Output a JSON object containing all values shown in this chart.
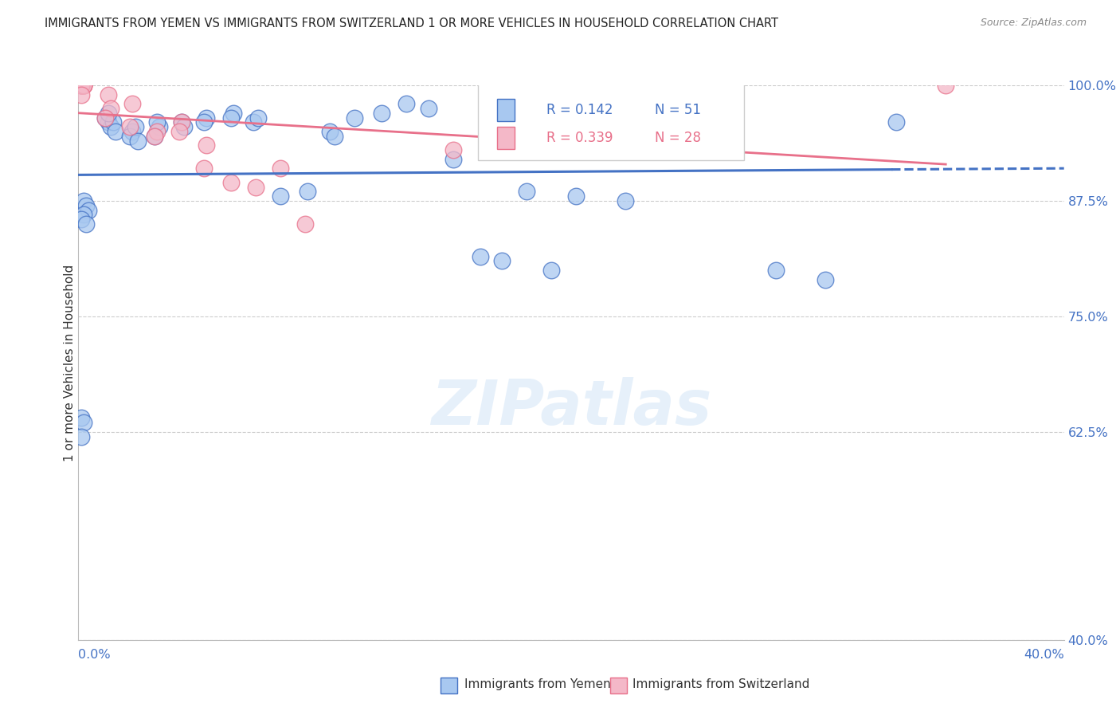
{
  "title": "IMMIGRANTS FROM YEMEN VS IMMIGRANTS FROM SWITZERLAND 1 OR MORE VEHICLES IN HOUSEHOLD CORRELATION CHART",
  "source": "Source: ZipAtlas.com",
  "ylabel": "1 or more Vehicles in Household",
  "ytick_vals": [
    0.4,
    0.625,
    0.75,
    0.875,
    1.0
  ],
  "ytick_labels": [
    "40.0%",
    "62.5%",
    "75.0%",
    "87.5%",
    "100.0%"
  ],
  "legend_yemen": "Immigrants from Yemen",
  "legend_switzerland": "Immigrants from Switzerland",
  "R_yemen": 0.142,
  "N_yemen": 51,
  "R_switzerland": 0.339,
  "N_switzerland": 28,
  "color_yemen_fill": "#A8C8F0",
  "color_switzerland_fill": "#F4B8C8",
  "color_yemen_edge": "#4472C4",
  "color_switzerland_edge": "#E8708A",
  "color_text_blue": "#4472C4",
  "color_text_pink": "#E8708A",
  "watermark": "ZIPatlas",
  "yemen_x": [
    0.002,
    0.003,
    0.004,
    0.002,
    0.001,
    0.003,
    0.001,
    0.002,
    0.001,
    0.012,
    0.013,
    0.011,
    0.014,
    0.012,
    0.015,
    0.022,
    0.021,
    0.023,
    0.024,
    0.033,
    0.032,
    0.031,
    0.042,
    0.043,
    0.052,
    0.051,
    0.063,
    0.062,
    0.071,
    0.073,
    0.082,
    0.093,
    0.102,
    0.104,
    0.112,
    0.123,
    0.133,
    0.142,
    0.152,
    0.163,
    0.172,
    0.182,
    0.192,
    0.202,
    0.222,
    0.232,
    0.252,
    0.263,
    0.283,
    0.303,
    0.332
  ],
  "yemen_y": [
    0.875,
    0.87,
    0.865,
    0.86,
    0.855,
    0.85,
    0.64,
    0.635,
    0.62,
    0.96,
    0.955,
    0.965,
    0.96,
    0.97,
    0.95,
    0.95,
    0.945,
    0.955,
    0.94,
    0.955,
    0.96,
    0.945,
    0.96,
    0.955,
    0.965,
    0.96,
    0.97,
    0.965,
    0.96,
    0.965,
    0.88,
    0.885,
    0.95,
    0.945,
    0.965,
    0.97,
    0.98,
    0.975,
    0.92,
    0.815,
    0.81,
    0.885,
    0.8,
    0.88,
    0.875,
    0.955,
    0.96,
    0.96,
    0.8,
    0.79,
    0.96
  ],
  "switzerland_x": [
    0.001,
    0.002,
    0.001,
    0.002,
    0.001,
    0.002,
    0.001,
    0.001,
    0.001,
    0.002,
    0.001,
    0.012,
    0.013,
    0.011,
    0.022,
    0.021,
    0.032,
    0.031,
    0.042,
    0.041,
    0.052,
    0.051,
    0.062,
    0.072,
    0.082,
    0.092,
    0.152,
    0.352
  ],
  "switzerland_y": [
    1.0,
    1.0,
    1.0,
    1.0,
    1.0,
    1.0,
    1.0,
    1.0,
    1.0,
    1.0,
    0.99,
    0.99,
    0.975,
    0.965,
    0.98,
    0.955,
    0.95,
    0.945,
    0.96,
    0.95,
    0.935,
    0.91,
    0.895,
    0.89,
    0.91,
    0.85,
    0.93,
    1.0
  ]
}
